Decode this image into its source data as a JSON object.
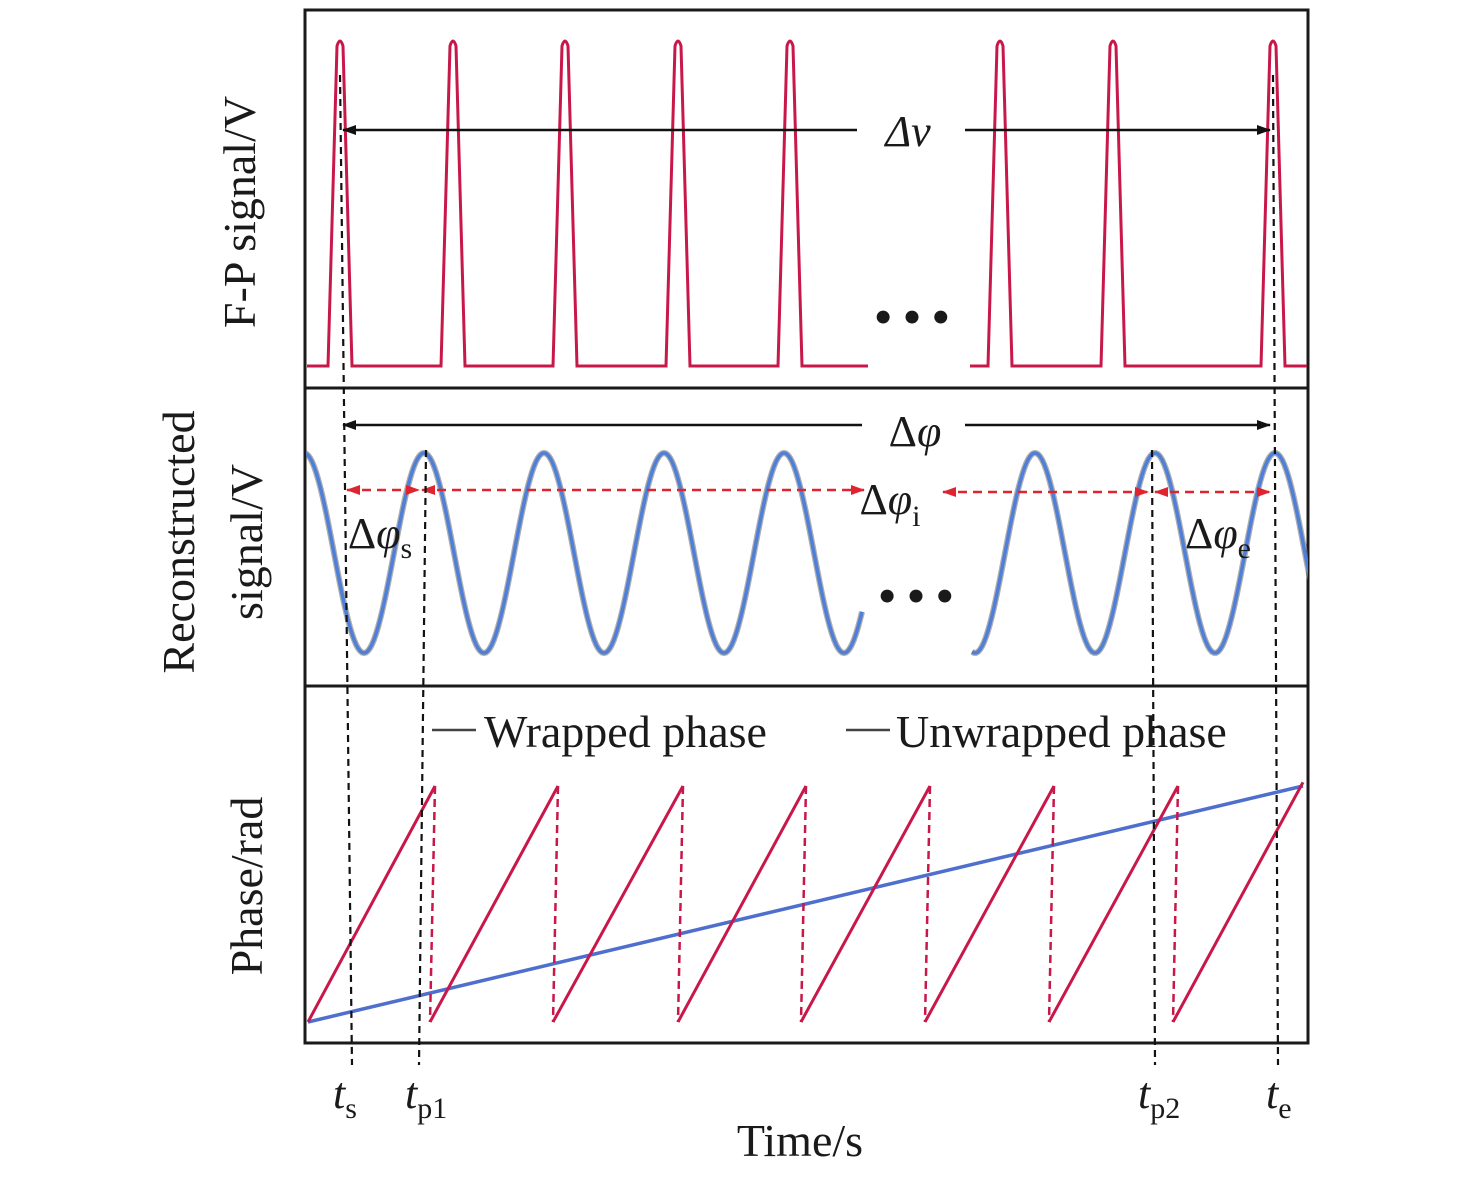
{
  "colors": {
    "fp_signal": "#c8184a",
    "reconstructed": "#4f7fd6",
    "reconstructed_shadow": "#6b6b6b",
    "wrapped_phase": "#c8184a",
    "unwrapped_phase": "#4f6fce",
    "guide_lines": "#111111",
    "red_arrows": "#e0242f",
    "frame": "#1a1a1a"
  },
  "panels": {
    "fp": {
      "ylabel": "F-P signal/V"
    },
    "recon": {
      "ylabel_line1": "Reconstructed",
      "ylabel_line2": "signal/V"
    },
    "phase": {
      "ylabel": "Phase/rad"
    }
  },
  "annotations": {
    "delta_nu": "Δν",
    "delta_phi_symbol": "φ",
    "delta_prefix": "Δ",
    "sub_i": "i",
    "sub_s": "s",
    "sub_e": "e"
  },
  "legend": {
    "wrapped": "Wrapped phase",
    "unwrapped": "Unwrapped phase"
  },
  "x_axis": {
    "title": "Time/s",
    "markers": [
      {
        "base": "t",
        "sub": "s"
      },
      {
        "base": "t",
        "sub": "p1"
      },
      {
        "base": "t",
        "sub": "p2"
      },
      {
        "base": "t",
        "sub": "e"
      }
    ]
  },
  "ellipsis": "• • •"
}
